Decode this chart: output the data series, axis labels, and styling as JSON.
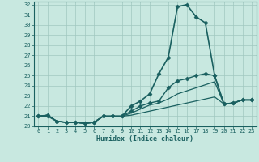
{
  "xlabel": "Humidex (Indice chaleur)",
  "background_color": "#c8e8e0",
  "grid_color": "#a0c8c0",
  "line_color": "#1a6060",
  "spine_color": "#1a6060",
  "xlim": [
    -0.5,
    23.5
  ],
  "ylim": [
    20,
    32.3
  ],
  "xticks": [
    0,
    1,
    2,
    3,
    4,
    5,
    6,
    7,
    8,
    9,
    10,
    11,
    12,
    13,
    14,
    15,
    16,
    17,
    18,
    19,
    20,
    21,
    22,
    23
  ],
  "yticks": [
    20,
    21,
    22,
    23,
    24,
    25,
    26,
    27,
    28,
    29,
    30,
    31,
    32
  ],
  "lines": [
    {
      "x": [
        0,
        1,
        2,
        3,
        4,
        5,
        6,
        7,
        8,
        9,
        10,
        11,
        12,
        13,
        14,
        15,
        16,
        17,
        18,
        19,
        20,
        21,
        22,
        23
      ],
      "y": [
        21.0,
        21.1,
        20.5,
        20.4,
        20.4,
        20.3,
        20.4,
        21.0,
        21.0,
        21.0,
        22.0,
        22.5,
        23.2,
        25.2,
        26.8,
        31.8,
        32.0,
        30.8,
        30.2,
        25.0,
        22.2,
        22.3,
        22.6,
        22.6
      ],
      "marker": "D",
      "markersize": 2.5,
      "linewidth": 1.2,
      "zorder": 5
    },
    {
      "x": [
        0,
        1,
        2,
        3,
        4,
        5,
        6,
        7,
        8,
        9,
        10,
        11,
        12,
        13,
        14,
        15,
        16,
        17,
        18,
        19,
        20,
        21,
        22,
        23
      ],
      "y": [
        21.0,
        21.0,
        20.5,
        20.4,
        20.4,
        20.3,
        20.4,
        21.0,
        21.0,
        21.0,
        21.5,
        22.0,
        22.3,
        22.5,
        23.8,
        24.5,
        24.7,
        25.0,
        25.2,
        25.0,
        22.2,
        22.3,
        22.6,
        22.6
      ],
      "marker": "D",
      "markersize": 2.5,
      "linewidth": 1.0,
      "zorder": 4
    },
    {
      "x": [
        0,
        1,
        2,
        3,
        4,
        5,
        6,
        7,
        8,
        9,
        10,
        11,
        12,
        13,
        14,
        15,
        16,
        17,
        18,
        19,
        20,
        21,
        22,
        23
      ],
      "y": [
        21.0,
        21.1,
        20.5,
        20.4,
        20.4,
        20.3,
        20.4,
        21.0,
        21.0,
        21.0,
        21.3,
        21.7,
        22.1,
        22.3,
        22.7,
        23.2,
        23.5,
        23.8,
        24.1,
        24.4,
        22.2,
        22.3,
        22.6,
        22.6
      ],
      "marker": null,
      "markersize": 0,
      "linewidth": 0.9,
      "zorder": 3
    },
    {
      "x": [
        0,
        1,
        2,
        3,
        4,
        5,
        6,
        7,
        8,
        9,
        10,
        11,
        12,
        13,
        14,
        15,
        16,
        17,
        18,
        19,
        20,
        21,
        22,
        23
      ],
      "y": [
        21.0,
        21.1,
        20.5,
        20.4,
        20.4,
        20.3,
        20.4,
        21.0,
        21.0,
        21.0,
        21.1,
        21.3,
        21.5,
        21.7,
        21.9,
        22.1,
        22.3,
        22.5,
        22.7,
        22.9,
        22.2,
        22.3,
        22.6,
        22.6
      ],
      "marker": null,
      "markersize": 0,
      "linewidth": 0.9,
      "zorder": 2
    }
  ]
}
